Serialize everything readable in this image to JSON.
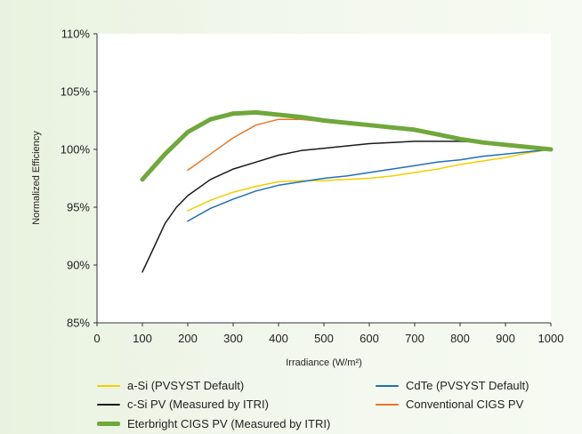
{
  "chart_data": {
    "type": "line",
    "title": "",
    "xlabel": "Irradiance (W/m²)",
    "ylabel": "Normalized Efficiency",
    "xlim": [
      0,
      1000
    ],
    "ylim": [
      85,
      110
    ],
    "x_ticks": [
      0,
      100,
      200,
      300,
      400,
      500,
      600,
      700,
      800,
      900,
      1000
    ],
    "y_ticks": [
      85,
      90,
      95,
      100,
      105,
      110
    ],
    "y_tick_labels": [
      "85%",
      "90%",
      "95%",
      "100%",
      "105%",
      "110%"
    ],
    "grid": false,
    "legend_position": "bottom",
    "series": [
      {
        "name": "a-Si (PVSYST Default)",
        "color": "#f2cf00",
        "width": 1.5,
        "x": [
          200,
          250,
          300,
          350,
          400,
          450,
          500,
          550,
          600,
          650,
          700,
          750,
          800,
          850,
          900,
          950,
          1000
        ],
        "y": [
          94.7,
          95.6,
          96.3,
          96.8,
          97.2,
          97.3,
          97.3,
          97.4,
          97.5,
          97.7,
          98.0,
          98.3,
          98.7,
          99.0,
          99.3,
          99.7,
          100.0
        ]
      },
      {
        "name": "CdTe (PVSYST Default)",
        "color": "#1f70b8",
        "width": 1.5,
        "x": [
          200,
          250,
          300,
          350,
          400,
          450,
          500,
          550,
          600,
          650,
          700,
          750,
          800,
          850,
          900,
          950,
          1000
        ],
        "y": [
          93.8,
          94.9,
          95.7,
          96.4,
          96.9,
          97.2,
          97.5,
          97.7,
          98.0,
          98.3,
          98.6,
          98.9,
          99.1,
          99.4,
          99.6,
          99.8,
          100.0
        ]
      },
      {
        "name": "c-Si PV (Measured by ITRI)",
        "color": "#1a1a1a",
        "width": 1.5,
        "x": [
          100,
          125,
          150,
          175,
          200,
          250,
          300,
          350,
          400,
          450,
          500,
          550,
          600,
          650,
          700,
          750,
          800,
          850,
          900,
          950,
          1000
        ],
        "y": [
          89.4,
          91.5,
          93.6,
          95.0,
          96.0,
          97.4,
          98.3,
          98.9,
          99.5,
          99.9,
          100.1,
          100.3,
          100.5,
          100.6,
          100.7,
          100.7,
          100.7,
          100.6,
          100.4,
          100.2,
          100.0
        ]
      },
      {
        "name": "Conventional CIGS PV",
        "color": "#e87722",
        "width": 1.5,
        "x": [
          200,
          250,
          300,
          350,
          400,
          450,
          500,
          550,
          600,
          650,
          700,
          750,
          800,
          850,
          900,
          950,
          1000
        ],
        "y": [
          98.2,
          99.6,
          101.0,
          102.1,
          102.6,
          102.6,
          102.4,
          102.3,
          102.1,
          101.8,
          101.6,
          101.3,
          101.0,
          100.7,
          100.4,
          100.2,
          100.0
        ]
      },
      {
        "name": "Eterbright CIGS PV (Measured by ITRI)",
        "color": "#6fa83b",
        "width": 5,
        "x": [
          100,
          150,
          200,
          250,
          300,
          350,
          400,
          450,
          500,
          550,
          600,
          650,
          700,
          750,
          800,
          850,
          900,
          950,
          1000
        ],
        "y": [
          97.4,
          99.6,
          101.5,
          102.6,
          103.1,
          103.2,
          103.0,
          102.8,
          102.5,
          102.3,
          102.1,
          101.9,
          101.7,
          101.3,
          100.9,
          100.6,
          100.4,
          100.2,
          100.0
        ]
      }
    ]
  }
}
